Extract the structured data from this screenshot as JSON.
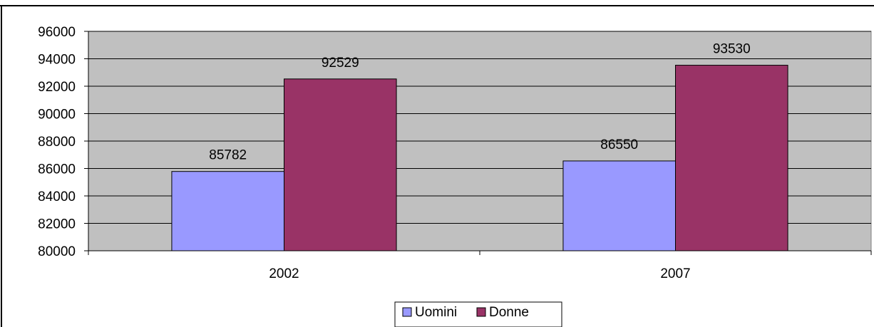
{
  "chart_data": {
    "type": "bar",
    "title": "",
    "xlabel": "",
    "ylabel": "",
    "categories": [
      "2002",
      "2007"
    ],
    "series": [
      {
        "name": "Uomini",
        "values": [
          85782,
          86550
        ],
        "color": "#9999ff"
      },
      {
        "name": "Donne",
        "values": [
          92529,
          93530
        ],
        "color": "#993366"
      }
    ],
    "ylim": [
      80000,
      96000
    ],
    "y_ticks": [
      "80000",
      "82000",
      "84000",
      "86000",
      "88000",
      "90000",
      "92000",
      "94000",
      "96000"
    ],
    "data_labels": [
      [
        "85782",
        "86550"
      ],
      [
        "92529",
        "93530"
      ]
    ],
    "grid": true,
    "plot_background": "#c0c0c0",
    "legend_position": "bottom"
  }
}
